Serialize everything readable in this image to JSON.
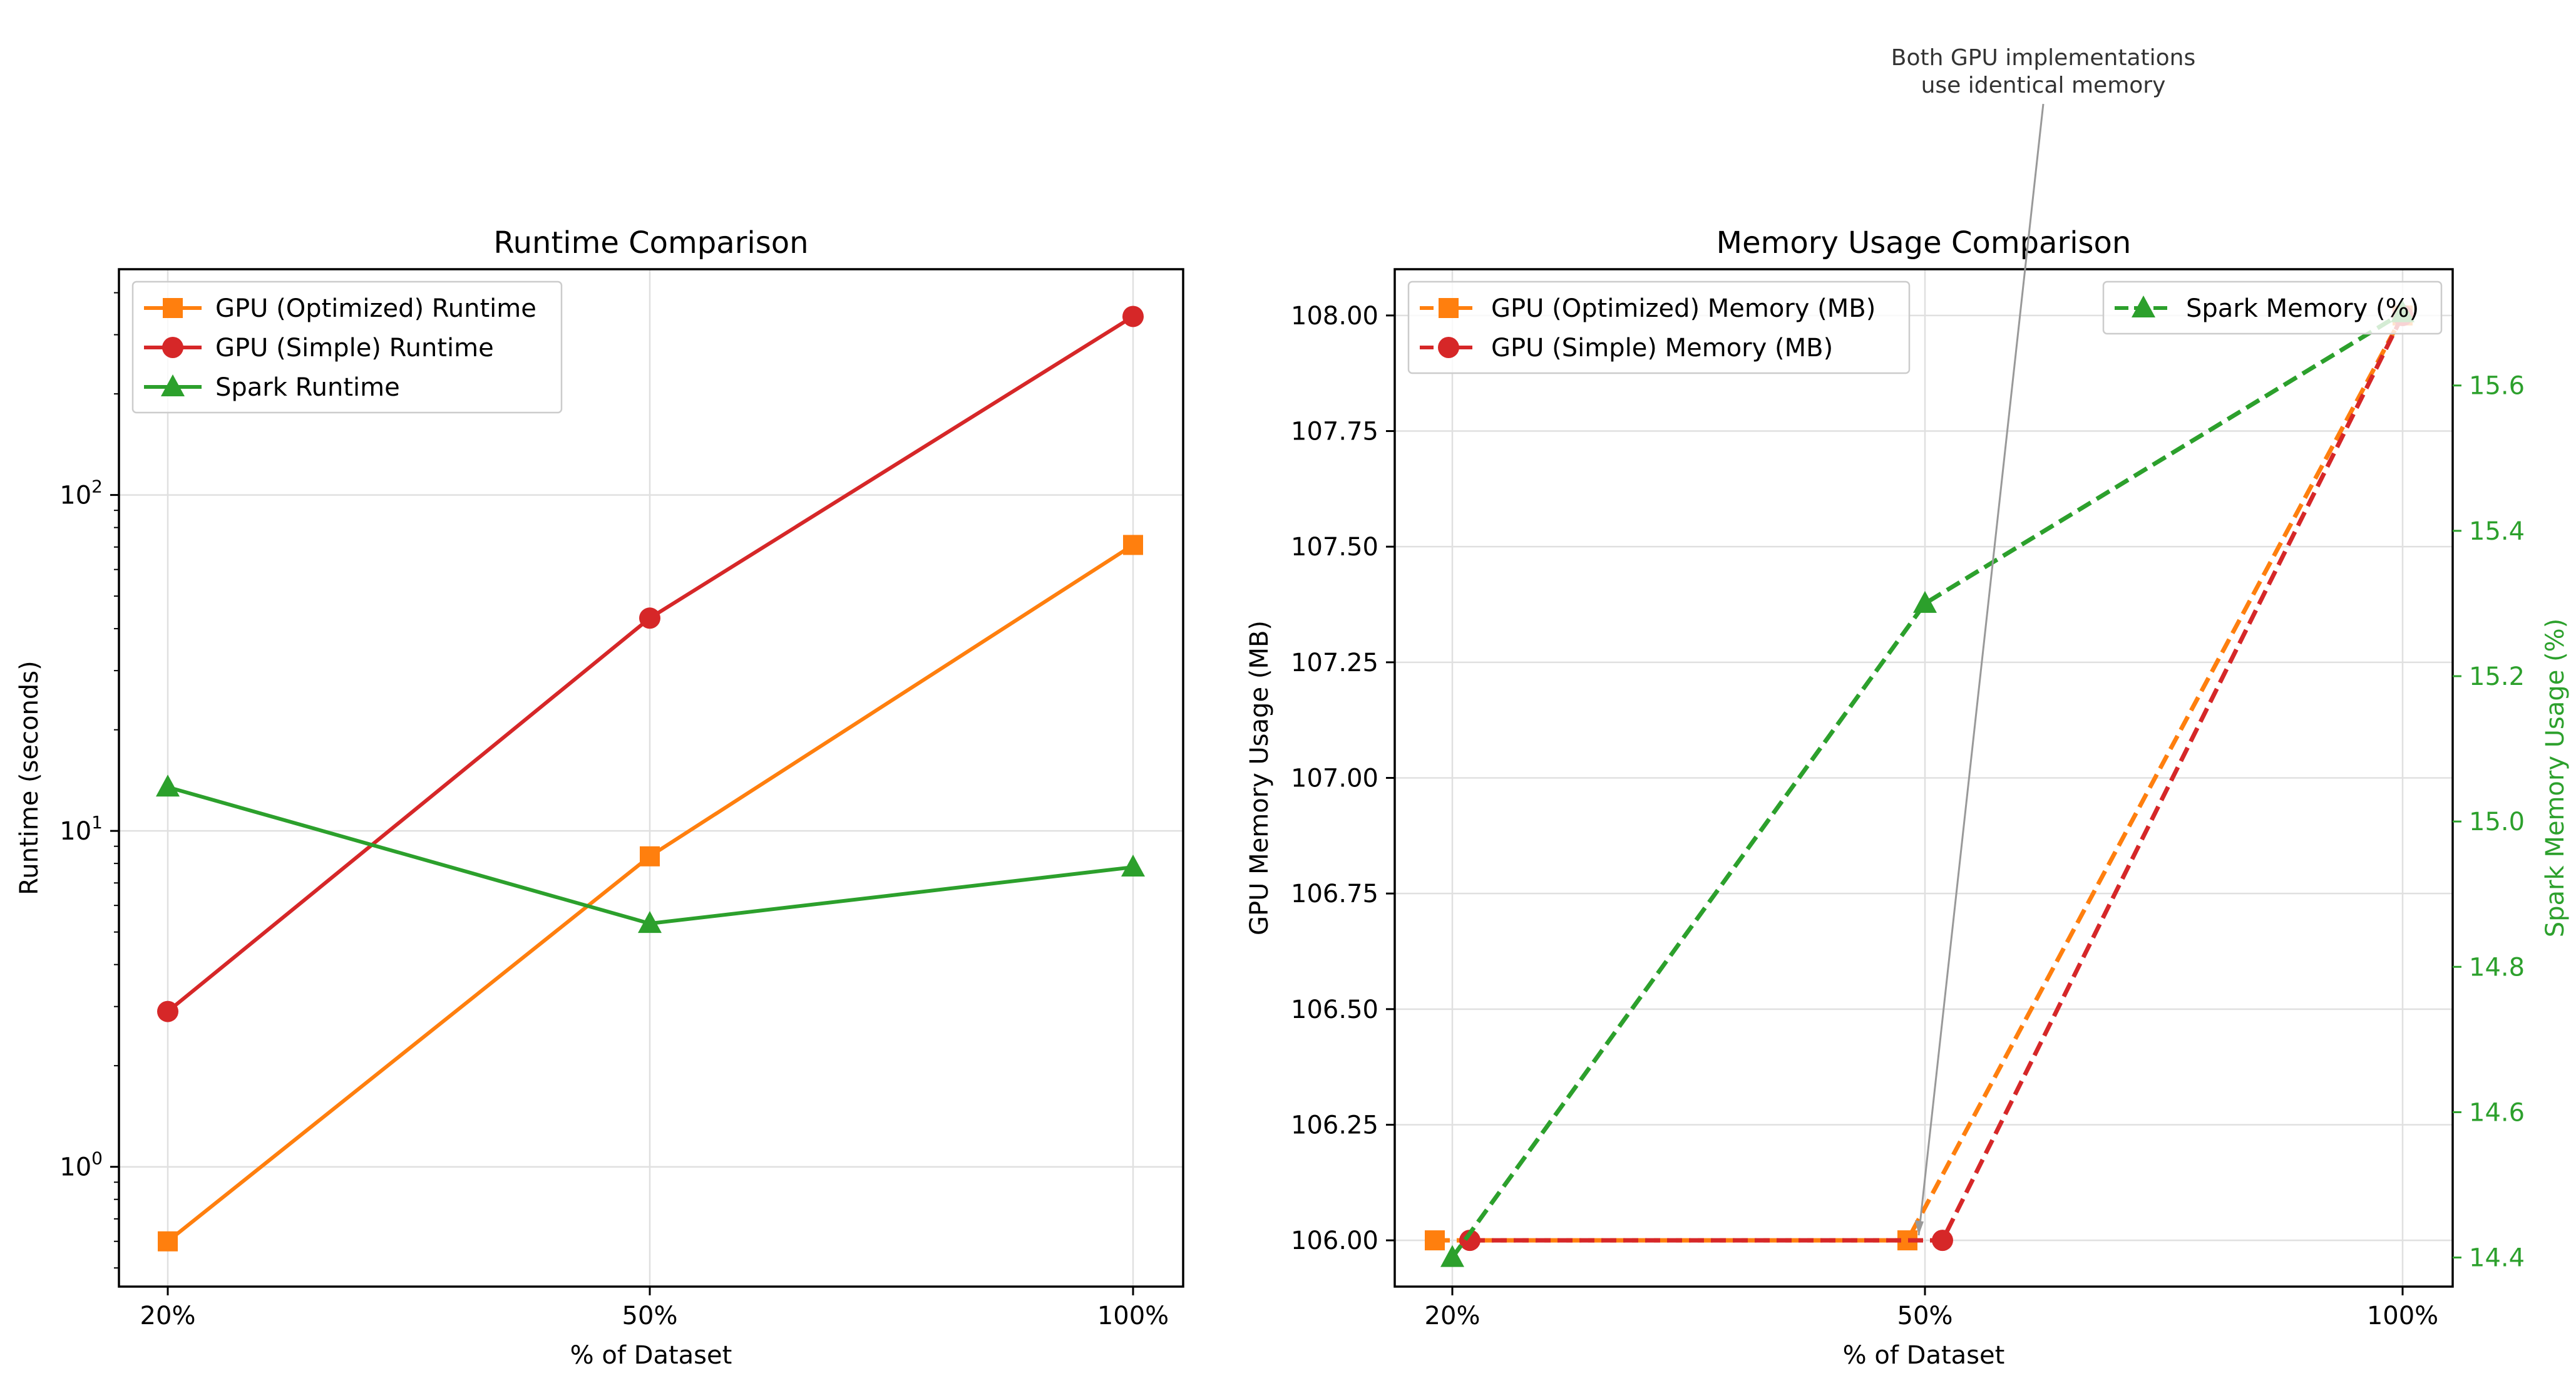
{
  "chart_data": [
    {
      "type": "line",
      "title": "Runtime Comparison",
      "xlabel": "% of Dataset",
      "ylabel": "Runtime (seconds)",
      "categories": [
        "20%",
        "50%",
        "100%"
      ],
      "yscale": "log",
      "ylim": [
        0.44,
        470
      ],
      "yticks": [
        {
          "value": 1,
          "label": "10^0",
          "base": "10",
          "exp": "0"
        },
        {
          "value": 10,
          "label": "10^1",
          "base": "10",
          "exp": "1"
        },
        {
          "value": 100,
          "label": "10^2",
          "base": "10",
          "exp": "2"
        }
      ],
      "grid": true,
      "legend_position": "upper-left",
      "series": [
        {
          "name": "GPU (Optimized) Runtime",
          "values": [
            0.6,
            8.4,
            71
          ],
          "color": "#ff7f0e",
          "marker": "square",
          "linestyle": "solid"
        },
        {
          "name": "GPU (Simple) Runtime",
          "values": [
            2.9,
            43,
            340
          ],
          "color": "#d62728",
          "marker": "circle",
          "linestyle": "solid"
        },
        {
          "name": "Spark Runtime",
          "values": [
            13.5,
            5.3,
            7.8
          ],
          "color": "#2ca02c",
          "marker": "triangle",
          "linestyle": "solid"
        }
      ]
    },
    {
      "type": "line",
      "title": "Memory Usage Comparison",
      "xlabel": "% of Dataset",
      "ylabel": "GPU Memory Usage (MB)",
      "y2label": "Spark Memory Usage (%)",
      "categories": [
        "20%",
        "50%",
        "100%"
      ],
      "ylim": [
        105.9,
        108.1
      ],
      "yticks": [
        "106.00",
        "106.25",
        "106.50",
        "106.75",
        "107.00",
        "107.25",
        "107.50",
        "107.75",
        "108.00"
      ],
      "y2lim": [
        14.36,
        15.76
      ],
      "y2ticks": [
        "14.4",
        "14.6",
        "14.8",
        "15.0",
        "15.2",
        "15.4",
        "15.6"
      ],
      "grid": true,
      "legend_position": "upper-left",
      "legend2_position": "upper-right",
      "series": [
        {
          "name": "GPU (Optimized) Memory (MB)",
          "values": [
            106,
            106,
            108
          ],
          "axis": "left",
          "color": "#ff7f0e",
          "marker": "square",
          "linestyle": "dashed"
        },
        {
          "name": "GPU (Simple) Memory (MB)",
          "values": [
            106,
            106,
            108
          ],
          "axis": "left",
          "color": "#d62728",
          "marker": "circle",
          "linestyle": "dashed"
        },
        {
          "name": "Spark Memory (%)",
          "values": [
            14.4,
            15.3,
            15.7
          ],
          "axis": "right",
          "color": "#2ca02c",
          "marker": "triangle",
          "linestyle": "dashed"
        }
      ],
      "annotation": {
        "lines": [
          "Both GPU implementations",
          "use identical memory"
        ],
        "points_to": {
          "category": "50%",
          "value": 106
        }
      }
    }
  ]
}
